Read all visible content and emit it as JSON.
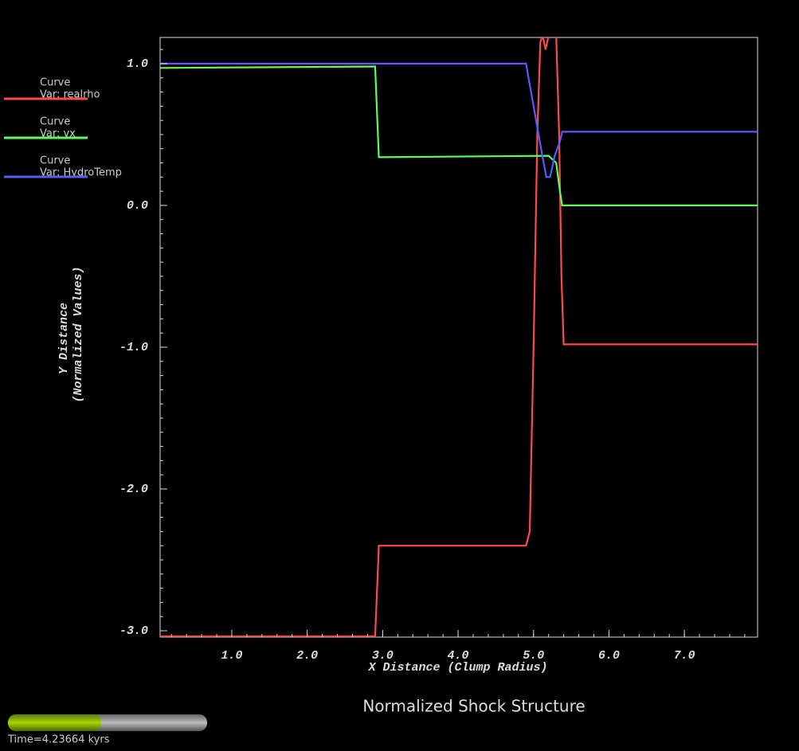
{
  "chart_data": {
    "type": "line",
    "title": "Normalized Shock Structure",
    "time_label": "Time=4.23664 kyrs",
    "x_label": "X Distance (Clump Radius)",
    "y_label": [
      "Y Distance",
      "(Normalized Values)"
    ],
    "legend_heading": "Curve",
    "xlim": [
      0.05,
      7.97
    ],
    "ylim": [
      -3.045,
      1.185
    ],
    "xticks": [
      {
        "value": 1,
        "label": "1.0"
      },
      {
        "value": 2,
        "label": "2.0"
      },
      {
        "value": 3,
        "label": "3.0"
      },
      {
        "value": 4,
        "label": "4.0"
      },
      {
        "value": 5,
        "label": "5.0"
      },
      {
        "value": 6,
        "label": "6.0"
      },
      {
        "value": 7,
        "label": "7.0"
      }
    ],
    "yticks": [
      {
        "value": 1,
        "label": "1.0"
      },
      {
        "value": 0,
        "label": "0.0"
      },
      {
        "value": -1,
        "label": "-1.0"
      },
      {
        "value": -2,
        "label": "-2.0"
      },
      {
        "value": -3,
        "label": "-3.0"
      }
    ],
    "series": [
      {
        "name": "Var: realrho",
        "color": "#ff4a4a",
        "x": [
          0.05,
          2.9,
          2.95,
          4.9,
          4.95,
          5.0,
          5.05,
          5.09,
          5.12,
          5.16,
          5.2,
          5.3,
          5.34,
          5.37,
          5.4,
          7.97
        ],
        "values": [
          -3.04,
          -3.04,
          -2.4,
          -2.4,
          -2.3,
          -1.0,
          0.5,
          1.15,
          1.2,
          1.1,
          1.2,
          1.2,
          0.5,
          -0.5,
          -0.98,
          -0.98
        ]
      },
      {
        "name": "Var: vx",
        "color": "#5aff5a",
        "x": [
          0.05,
          2.9,
          2.95,
          5.2,
          5.3,
          5.35,
          5.38,
          7.97
        ],
        "values": [
          0.97,
          0.98,
          0.34,
          0.35,
          0.3,
          0.1,
          0.0,
          0.0
        ]
      },
      {
        "name": "Var: HydroTemp",
        "color": "#5a5aff",
        "x": [
          0.05,
          4.9,
          5.0,
          5.1,
          5.17,
          5.22,
          5.28,
          5.35,
          5.38,
          7.97
        ],
        "values": [
          1.0,
          1.0,
          0.7,
          0.4,
          0.2,
          0.2,
          0.35,
          0.45,
          0.52,
          0.52
        ]
      }
    ]
  }
}
